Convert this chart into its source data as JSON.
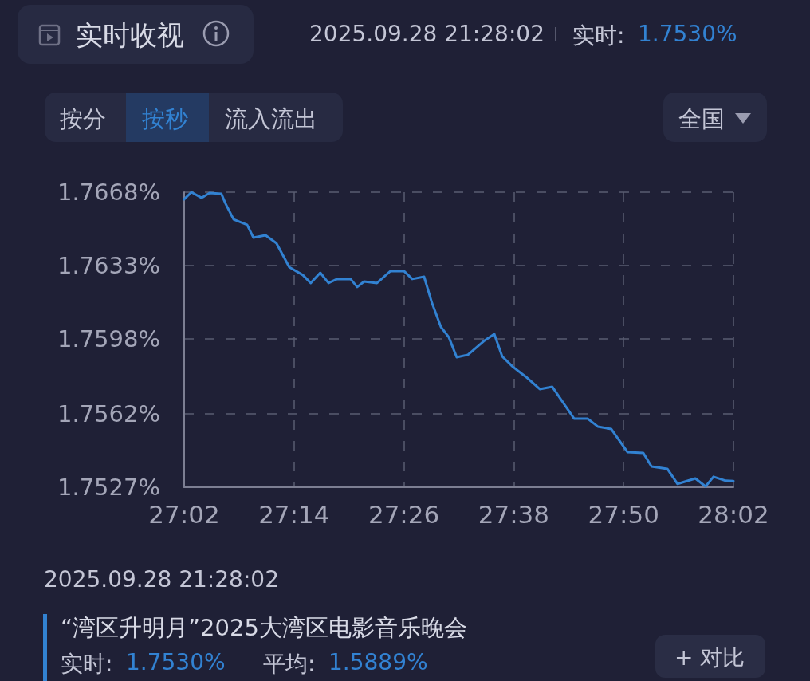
{
  "chart_data": {
    "type": "line",
    "title": "实时收视",
    "annotations": [
      "2025.09.28 21:28:02",
      "实时:",
      "1.7530%",
      "按分",
      "按秒",
      "流入流出",
      "全国",
      "2025.09.28 21:28:02",
      "“湾区升明月”2025大湾区电影音乐晚会",
      "实时:",
      "1.7530%",
      "平均:",
      "1.5889%",
      "+ 对比"
    ],
    "x": [
      27.0333,
      27.0465,
      27.0651,
      27.0795,
      27.1011,
      27.1083,
      27.1233,
      27.1479,
      27.1593,
      27.1815,
      27.2013,
      27.2247,
      27.2493,
      27.2637,
      27.2811,
      27.2961,
      27.3117,
      27.3363,
      27.3483,
      27.3609,
      27.3843,
      27.4089,
      27.4335,
      27.4485,
      27.4701,
      27.4845,
      27.5007,
      27.5151,
      27.5295,
      27.5499,
      27.5787,
      27.5979,
      27.6123,
      27.6315,
      27.6561,
      27.6807,
      27.7035,
      27.7431,
      27.7677,
      27.7863,
      27.8109,
      27.8403,
      27.8691,
      27.8841,
      27.9129,
      27.9315,
      27.9639,
      27.9825,
      27.9969,
      28.0191,
      28.0333
    ],
    "series": [
      {
        "color": "#3282d2",
        "values": [
          1.76646,
          1.7668,
          1.76653,
          1.76676,
          1.76672,
          1.76627,
          1.7655,
          1.76524,
          1.76463,
          1.76474,
          1.76436,
          1.76322,
          1.76284,
          1.76246,
          1.76295,
          1.76246,
          1.76265,
          1.76265,
          1.76227,
          1.76253,
          1.76246,
          1.76303,
          1.76303,
          1.76265,
          1.76276,
          1.7615,
          1.76036,
          1.75987,
          1.75891,
          1.75903,
          1.75968,
          1.76002,
          1.75895,
          1.75846,
          1.75796,
          1.75739,
          1.7575,
          1.75598,
          1.75598,
          1.7556,
          1.75548,
          1.75438,
          1.75434,
          1.75369,
          1.75358,
          1.75286,
          1.75312,
          1.75274,
          1.7532,
          1.75301,
          1.753
        ]
      }
    ],
    "xlim": [
      27.0333,
      28.0333
    ],
    "xticks": [
      {
        "value": 27.0333,
        "label": "27:02"
      },
      {
        "value": 27.2333,
        "label": "27:14"
      },
      {
        "value": 27.4333,
        "label": "27:26"
      },
      {
        "value": 27.6333,
        "label": "27:38"
      },
      {
        "value": 27.8333,
        "label": "27:50"
      },
      {
        "value": 28.0333,
        "label": "28:02"
      }
    ],
    "ylim": [
      1.7527,
      1.7668
    ],
    "yticks": [
      {
        "value": 1.7527,
        "label": "1.7527%"
      },
      {
        "value": 1.7562,
        "label": "1.7562%"
      },
      {
        "value": 1.7598,
        "label": "1.7598%"
      },
      {
        "value": 1.7633,
        "label": "1.7633%"
      },
      {
        "value": 1.7668,
        "label": "1.7668%"
      }
    ],
    "grid": true,
    "line_style": "solid"
  }
}
